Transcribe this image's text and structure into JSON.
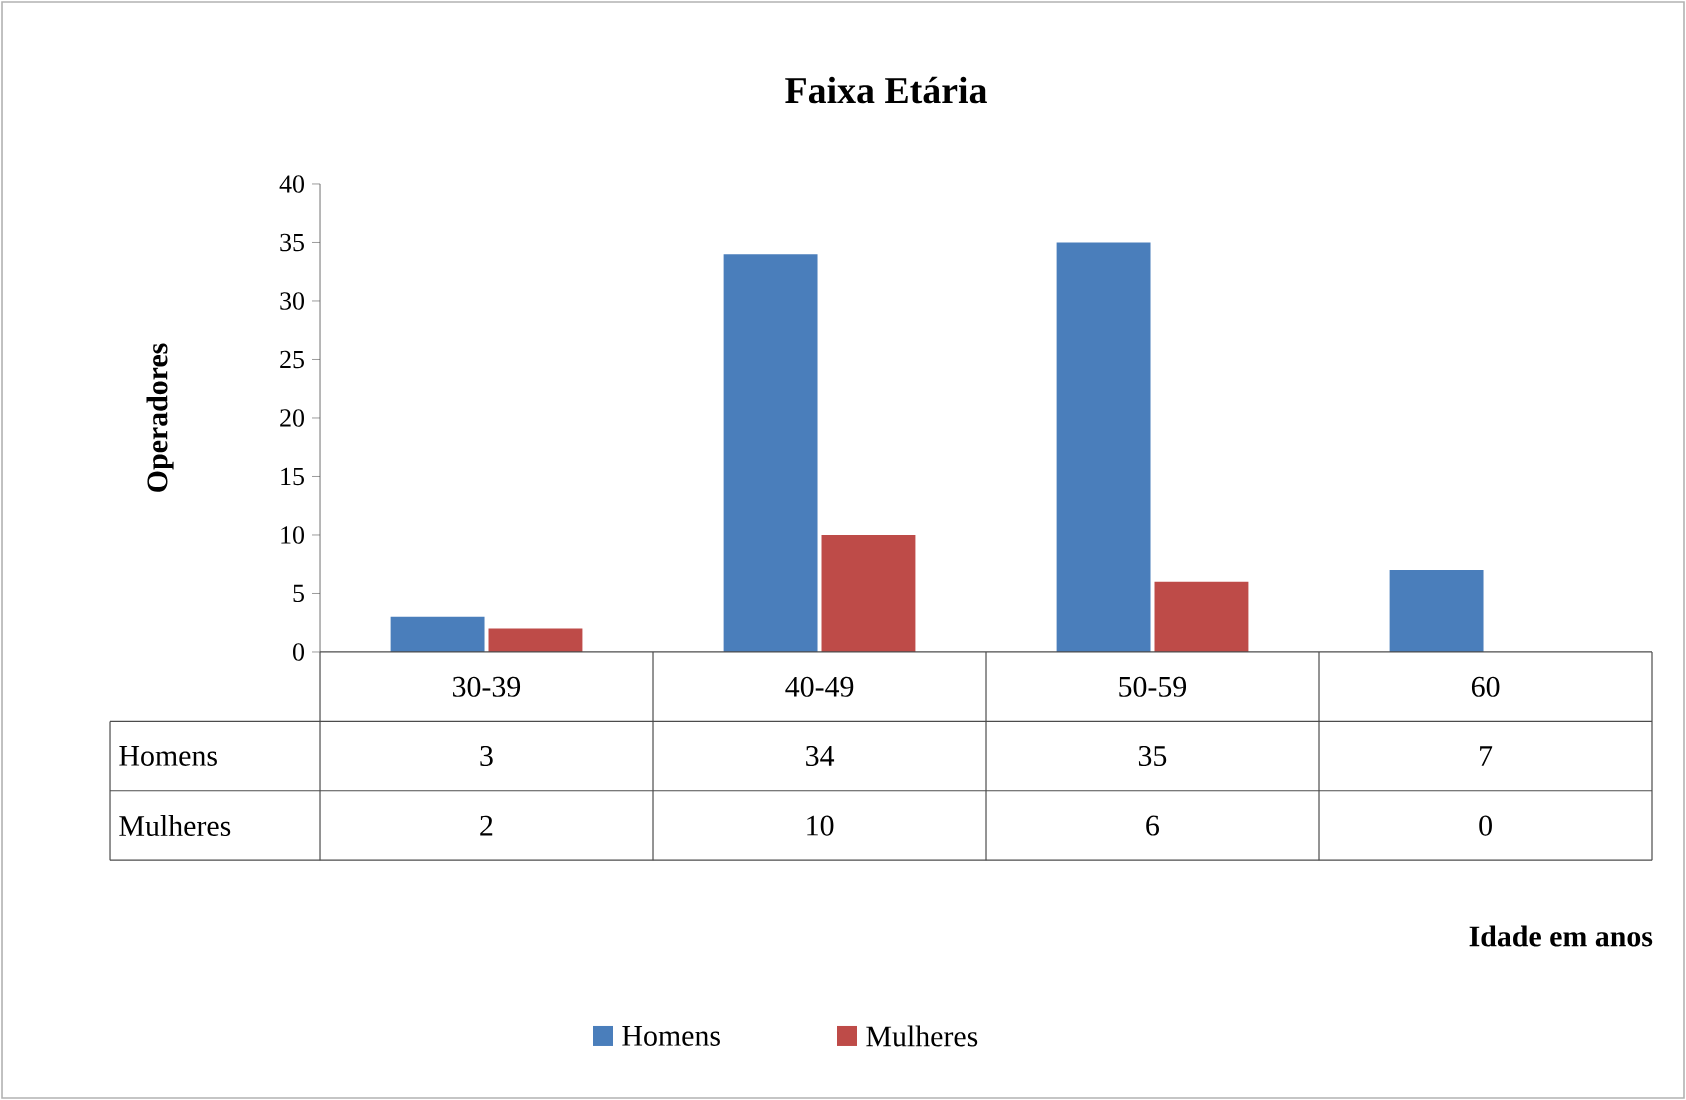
{
  "chart_data": {
    "type": "bar",
    "title": "Faixa Etária",
    "ylabel": "Operadores",
    "annotations": [
      "Idade em anos"
    ],
    "categories": [
      "30-39",
      "40-49",
      "50-59",
      "60"
    ],
    "series": [
      {
        "name": "Homens",
        "color": "#4a7ebb",
        "values": [
          3,
          34,
          35,
          7
        ]
      },
      {
        "name": "Mulheres",
        "color": "#be4b48",
        "values": [
          2,
          10,
          6,
          0
        ]
      }
    ],
    "ylim": [
      0,
      40
    ],
    "yticks": [
      0,
      5,
      10,
      15,
      20,
      25,
      30,
      35,
      40
    ],
    "data_labels": true,
    "legend": "bottom",
    "grid": false
  }
}
